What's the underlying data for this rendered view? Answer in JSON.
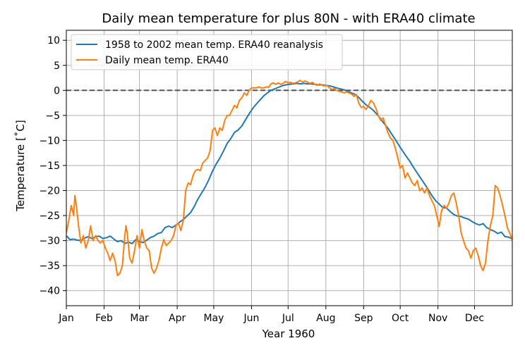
{
  "chart_data": {
    "type": "line",
    "title": "Daily mean temperature for plus 80N - with ERA40 climate",
    "xlabel": "Year 1960",
    "ylabel": "Temperature [$^\\circ$C]",
    "ylabel_text": "Temperature [˚C]",
    "x_ticks": [
      {
        "day": 0,
        "label": "Jan"
      },
      {
        "day": 31,
        "label": "Feb"
      },
      {
        "day": 60,
        "label": "Mar"
      },
      {
        "day": 91,
        "label": "Apr"
      },
      {
        "day": 121,
        "label": "May"
      },
      {
        "day": 152,
        "label": "Jun"
      },
      {
        "day": 182,
        "label": "Jul"
      },
      {
        "day": 213,
        "label": "Aug"
      },
      {
        "day": 244,
        "label": "Sep"
      },
      {
        "day": 274,
        "label": "Oct"
      },
      {
        "day": 305,
        "label": "Nov"
      },
      {
        "day": 335,
        "label": "Dec"
      }
    ],
    "xlim": [
      0,
      366
    ],
    "ylim": [
      -43,
      12
    ],
    "y_ticks": [
      -40,
      -35,
      -30,
      -25,
      -20,
      -15,
      -10,
      -5,
      0,
      5,
      10
    ],
    "grid": true,
    "legend_position": "top-left",
    "reference_line": {
      "y": 0,
      "style": "dashed",
      "color": "#555555"
    },
    "series": [
      {
        "name": "1958 to 2002 mean temp. ERA40 reanalysis",
        "color": "#1f77b4",
        "points": [
          [
            0,
            -29
          ],
          [
            3,
            -29.8
          ],
          [
            6,
            -29.7
          ],
          [
            9,
            -29.9
          ],
          [
            12,
            -30
          ],
          [
            15,
            -29.5
          ],
          [
            18,
            -29.2
          ],
          [
            21,
            -29.6
          ],
          [
            24,
            -29.2
          ],
          [
            27,
            -29.1
          ],
          [
            30,
            -29.6
          ],
          [
            33,
            -29.4
          ],
          [
            36,
            -29.1
          ],
          [
            39,
            -29.7
          ],
          [
            42,
            -30.2
          ],
          [
            45,
            -30
          ],
          [
            48,
            -30.6
          ],
          [
            51,
            -30.3
          ],
          [
            54,
            -30.6
          ],
          [
            57,
            -29.8
          ],
          [
            60,
            -30.2
          ],
          [
            63,
            -30.4
          ],
          [
            66,
            -29.9
          ],
          [
            69,
            -29.4
          ],
          [
            72,
            -29.1
          ],
          [
            75,
            -28.6
          ],
          [
            78,
            -28.4
          ],
          [
            81,
            -27.4
          ],
          [
            84,
            -27.1
          ],
          [
            87,
            -27.4
          ],
          [
            90,
            -26.9
          ],
          [
            93,
            -26.3
          ],
          [
            96,
            -25.8
          ],
          [
            99,
            -25.1
          ],
          [
            102,
            -24.4
          ],
          [
            105,
            -23.2
          ],
          [
            108,
            -21.7
          ],
          [
            111,
            -20.5
          ],
          [
            114,
            -19.3
          ],
          [
            117,
            -17.8
          ],
          [
            120,
            -16.1
          ],
          [
            123,
            -14.7
          ],
          [
            126,
            -13.5
          ],
          [
            129,
            -12.1
          ],
          [
            132,
            -10.6
          ],
          [
            135,
            -9.6
          ],
          [
            138,
            -8.4
          ],
          [
            141,
            -7.9
          ],
          [
            144,
            -7.1
          ],
          [
            147,
            -5.9
          ],
          [
            150,
            -4.7
          ],
          [
            153,
            -3.6
          ],
          [
            156,
            -2.7
          ],
          [
            159,
            -1.9
          ],
          [
            162,
            -1.1
          ],
          [
            165,
            -0.5
          ],
          [
            168,
            0
          ],
          [
            171,
            0.3
          ],
          [
            174,
            0.6
          ],
          [
            177,
            0.9
          ],
          [
            180,
            1.1
          ],
          [
            183,
            1.2
          ],
          [
            186,
            1.3
          ],
          [
            189,
            1.4
          ],
          [
            192,
            1.3
          ],
          [
            195,
            1.4
          ],
          [
            198,
            1.3
          ],
          [
            201,
            1.3
          ],
          [
            204,
            1.2
          ],
          [
            207,
            1.1
          ],
          [
            210,
            1.1
          ],
          [
            213,
            1.0
          ],
          [
            216,
            0.9
          ],
          [
            219,
            0.7
          ],
          [
            222,
            0.5
          ],
          [
            225,
            0.3
          ],
          [
            228,
            0.1
          ],
          [
            231,
            -0.2
          ],
          [
            234,
            -0.5
          ],
          [
            237,
            -0.8
          ],
          [
            240,
            -1.4
          ],
          [
            243,
            -2.2
          ],
          [
            246,
            -2.9
          ],
          [
            249,
            -3.4
          ],
          [
            252,
            -4.0
          ],
          [
            255,
            -4.8
          ],
          [
            258,
            -5.7
          ],
          [
            261,
            -6.7
          ],
          [
            264,
            -7.6
          ],
          [
            267,
            -8.7
          ],
          [
            270,
            -9.8
          ],
          [
            273,
            -11.0
          ],
          [
            276,
            -12.1
          ],
          [
            279,
            -13.2
          ],
          [
            282,
            -14.2
          ],
          [
            285,
            -15.4
          ],
          [
            288,
            -16.5
          ],
          [
            291,
            -17.6
          ],
          [
            294,
            -18.7
          ],
          [
            297,
            -19.8
          ],
          [
            300,
            -21.0
          ],
          [
            303,
            -22.0
          ],
          [
            306,
            -22.7
          ],
          [
            309,
            -23.4
          ],
          [
            312,
            -23.5
          ],
          [
            315,
            -24.2
          ],
          [
            318,
            -24.8
          ],
          [
            321,
            -25.1
          ],
          [
            324,
            -25.2
          ],
          [
            327,
            -25.5
          ],
          [
            330,
            -25.7
          ],
          [
            333,
            -26.2
          ],
          [
            336,
            -26.6
          ],
          [
            339,
            -26.9
          ],
          [
            342,
            -26.6
          ],
          [
            345,
            -27.4
          ],
          [
            348,
            -27.8
          ],
          [
            351,
            -28.1
          ],
          [
            354,
            -28.6
          ],
          [
            357,
            -28.3
          ],
          [
            360,
            -29.2
          ],
          [
            363,
            -29.3
          ],
          [
            366,
            -29.7
          ]
        ]
      },
      {
        "name": "Daily mean temp. ERA40",
        "color": "#ff7f0e",
        "points": [
          [
            0,
            -28.5
          ],
          [
            2,
            -26
          ],
          [
            4,
            -23
          ],
          [
            6,
            -25
          ],
          [
            7,
            -21
          ],
          [
            8,
            -22.5
          ],
          [
            10,
            -27
          ],
          [
            12,
            -30.5
          ],
          [
            14,
            -29
          ],
          [
            16,
            -31.5
          ],
          [
            18,
            -30
          ],
          [
            20,
            -27
          ],
          [
            22,
            -30
          ],
          [
            24,
            -29
          ],
          [
            26,
            -30
          ],
          [
            28,
            -30.5
          ],
          [
            30,
            -30
          ],
          [
            32,
            -31.5
          ],
          [
            34,
            -32.5
          ],
          [
            36,
            -34
          ],
          [
            38,
            -32.5
          ],
          [
            40,
            -34
          ],
          [
            42,
            -37
          ],
          [
            44,
            -36.5
          ],
          [
            46,
            -35
          ],
          [
            48,
            -29
          ],
          [
            49,
            -27
          ],
          [
            50,
            -28.5
          ],
          [
            52,
            -33.5
          ],
          [
            54,
            -34.5
          ],
          [
            56,
            -32
          ],
          [
            58,
            -29
          ],
          [
            60,
            -31.5
          ],
          [
            62,
            -27.8
          ],
          [
            64,
            -30
          ],
          [
            66,
            -31.5
          ],
          [
            68,
            -32
          ],
          [
            70,
            -35.5
          ],
          [
            72,
            -36.5
          ],
          [
            74,
            -35.5
          ],
          [
            76,
            -34
          ],
          [
            78,
            -31.5
          ],
          [
            80,
            -29.8
          ],
          [
            82,
            -31
          ],
          [
            84,
            -30.5
          ],
          [
            86,
            -30
          ],
          [
            88,
            -29
          ],
          [
            90,
            -27
          ],
          [
            92,
            -26.5
          ],
          [
            94,
            -28
          ],
          [
            96,
            -26
          ],
          [
            98,
            -20
          ],
          [
            100,
            -18.5
          ],
          [
            102,
            -18.8
          ],
          [
            104,
            -17
          ],
          [
            106,
            -16
          ],
          [
            108,
            -15.8
          ],
          [
            110,
            -16
          ],
          [
            112,
            -14.5
          ],
          [
            114,
            -14
          ],
          [
            116,
            -13.5
          ],
          [
            118,
            -12
          ],
          [
            120,
            -8
          ],
          [
            122,
            -7.5
          ],
          [
            124,
            -9
          ],
          [
            126,
            -7.5
          ],
          [
            128,
            -8
          ],
          [
            130,
            -6
          ],
          [
            132,
            -5
          ],
          [
            134,
            -5
          ],
          [
            136,
            -4
          ],
          [
            138,
            -3
          ],
          [
            140,
            -3.5
          ],
          [
            142,
            -2
          ],
          [
            144,
            -1.5
          ],
          [
            146,
            -0.5
          ],
          [
            148,
            -1
          ],
          [
            150,
            0
          ],
          [
            152,
            0.5
          ],
          [
            154,
            0.5
          ],
          [
            156,
            0.5
          ],
          [
            158,
            0.7
          ],
          [
            160,
            0.5
          ],
          [
            162,
            0.5
          ],
          [
            164,
            0.7
          ],
          [
            166,
            0.6
          ],
          [
            168,
            1.3
          ],
          [
            170,
            1.5
          ],
          [
            172,
            1.2
          ],
          [
            174,
            1.5
          ],
          [
            176,
            1.2
          ],
          [
            178,
            1.4
          ],
          [
            180,
            1.8
          ],
          [
            182,
            1.5
          ],
          [
            184,
            1.6
          ],
          [
            186,
            1.4
          ],
          [
            188,
            1.5
          ],
          [
            190,
            1.7
          ],
          [
            192,
            2.0
          ],
          [
            194,
            1.6
          ],
          [
            196,
            1.9
          ],
          [
            198,
            1.6
          ],
          [
            200,
            1.4
          ],
          [
            202,
            1.6
          ],
          [
            204,
            1.2
          ],
          [
            206,
            1.0
          ],
          [
            208,
            1.3
          ],
          [
            210,
            1.0
          ],
          [
            212,
            0.9
          ],
          [
            214,
            1.0
          ],
          [
            216,
            0.5
          ],
          [
            218,
            0.2
          ],
          [
            220,
            0.4
          ],
          [
            222,
            0
          ],
          [
            224,
            -0.2
          ],
          [
            226,
            -0.3
          ],
          [
            228,
            -0.5
          ],
          [
            230,
            -0.3
          ],
          [
            232,
            -0.5
          ],
          [
            234,
            -0.7
          ],
          [
            236,
            -1.2
          ],
          [
            238,
            -0.8
          ],
          [
            240,
            -2.5
          ],
          [
            242,
            -3.4
          ],
          [
            244,
            -3.2
          ],
          [
            246,
            -3.8
          ],
          [
            248,
            -3.0
          ],
          [
            250,
            -2.0
          ],
          [
            252,
            -2.5
          ],
          [
            254,
            -3.5
          ],
          [
            256,
            -5
          ],
          [
            258,
            -6
          ],
          [
            260,
            -5.5
          ],
          [
            262,
            -7
          ],
          [
            264,
            -8.5
          ],
          [
            266,
            -9.5
          ],
          [
            268,
            -10
          ],
          [
            270,
            -11.5
          ],
          [
            272,
            -13.5
          ],
          [
            274,
            -15.5
          ],
          [
            276,
            -15
          ],
          [
            278,
            -17.5
          ],
          [
            280,
            -16.5
          ],
          [
            282,
            -17.5
          ],
          [
            284,
            -18.5
          ],
          [
            286,
            -19
          ],
          [
            288,
            -18
          ],
          [
            290,
            -20
          ],
          [
            292,
            -19.5
          ],
          [
            294,
            -20.5
          ],
          [
            296,
            -19.5
          ],
          [
            298,
            -21
          ],
          [
            300,
            -22
          ],
          [
            302,
            -23
          ],
          [
            304,
            -25
          ],
          [
            306,
            -27.2
          ],
          [
            308,
            -24
          ],
          [
            310,
            -23
          ],
          [
            312,
            -23.5
          ],
          [
            314,
            -22.5
          ],
          [
            316,
            -21
          ],
          [
            318,
            -20.5
          ],
          [
            320,
            -22.5
          ],
          [
            322,
            -25
          ],
          [
            324,
            -28.5
          ],
          [
            326,
            -30
          ],
          [
            328,
            -31.5
          ],
          [
            330,
            -32
          ],
          [
            332,
            -33.5
          ],
          [
            334,
            -32
          ],
          [
            336,
            -31.5
          ],
          [
            338,
            -33
          ],
          [
            340,
            -35
          ],
          [
            342,
            -36
          ],
          [
            344,
            -34.5
          ],
          [
            346,
            -30
          ],
          [
            348,
            -27
          ],
          [
            350,
            -25
          ],
          [
            352,
            -19
          ],
          [
            354,
            -19.5
          ],
          [
            356,
            -21
          ],
          [
            358,
            -23
          ],
          [
            360,
            -25
          ],
          [
            362,
            -27.5
          ],
          [
            364,
            -28.5
          ],
          [
            366,
            -30
          ]
        ]
      }
    ]
  }
}
